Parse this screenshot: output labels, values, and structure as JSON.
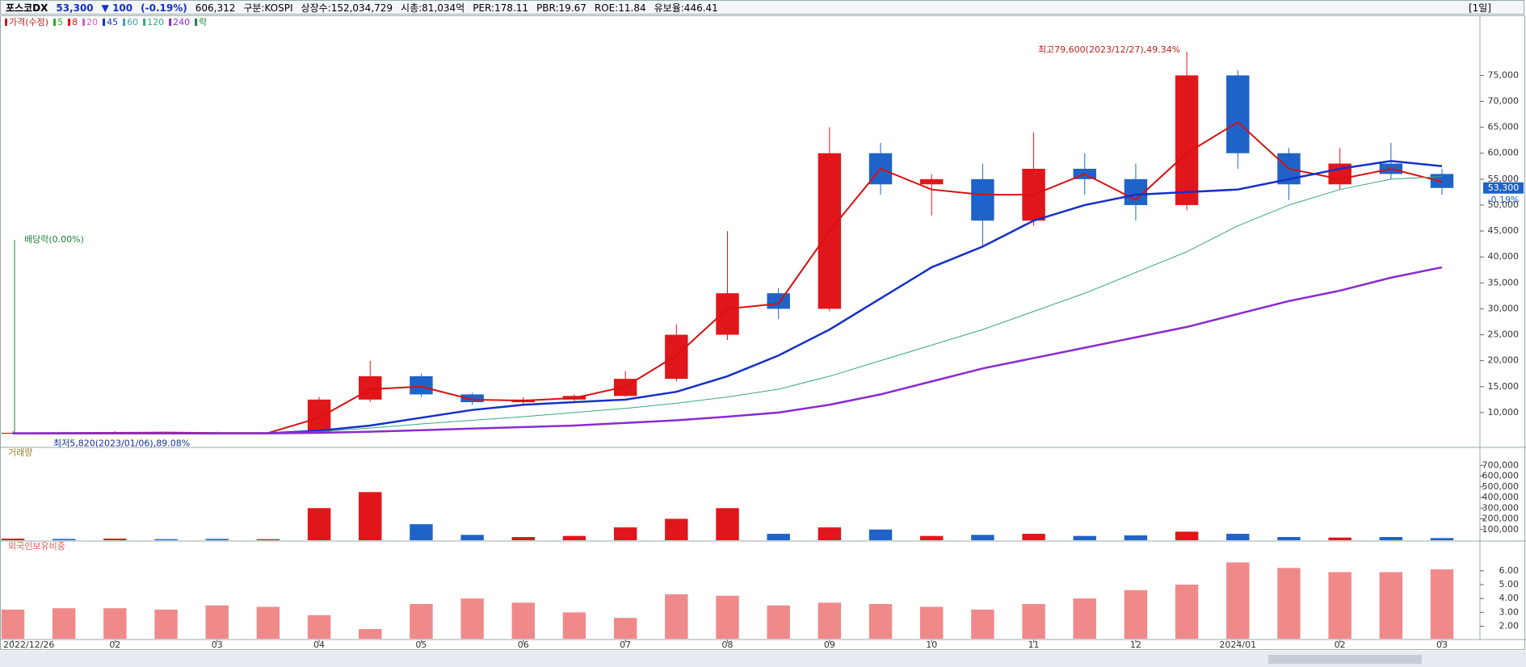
{
  "header": {
    "name": "포스코DX",
    "price": "53,300",
    "change": "▼ 100",
    "change_pct": "(-0.19%)",
    "volume": "606,312",
    "market": "구분:KOSPI",
    "shares": "상장수:152,034,729",
    "cap": "시총:81,034억",
    "per": "PER:178.11",
    "pbr": "PBR:19.67",
    "roe": "ROE:11.84",
    "reserve": "유보율:446.41",
    "period": "[1일]"
  },
  "chart_data": [
    {
      "type": "candlestick",
      "title": "가격(수정)",
      "categories": [
        "2022/12/26",
        null,
        "02",
        null,
        "03",
        null,
        "04",
        null,
        "05",
        null,
        "06",
        null,
        "07",
        null,
        "08",
        null,
        "09",
        null,
        "10",
        null,
        "11",
        null,
        "12",
        null,
        "2024/01",
        null,
        "02",
        null,
        "03"
      ],
      "open": [
        5900,
        6100,
        6000,
        6200,
        6100,
        6000,
        6100,
        12500,
        17000,
        13500,
        12000,
        12500,
        13200,
        16500,
        25000,
        33000,
        30000,
        60000,
        54000,
        55000,
        47000,
        57000,
        55000,
        50000,
        75000,
        60000,
        54000,
        58000,
        56000
      ],
      "high": [
        6400,
        6300,
        6400,
        6300,
        6300,
        6200,
        13000,
        20000,
        17500,
        13800,
        13000,
        13500,
        18000,
        27000,
        45000,
        34000,
        65000,
        62000,
        56000,
        58000,
        64000,
        60000,
        58000,
        79600,
        76000,
        61000,
        61000,
        62000,
        57000
      ],
      "low": [
        5820,
        5900,
        5900,
        6000,
        5900,
        5900,
        6000,
        12000,
        13000,
        11500,
        11500,
        12000,
        13000,
        16000,
        24000,
        28000,
        29500,
        52000,
        48000,
        42000,
        46000,
        52000,
        47000,
        49000,
        57000,
        51000,
        53000,
        55000,
        52000
      ],
      "close": [
        6100,
        6000,
        6200,
        6100,
        6000,
        6100,
        12500,
        17000,
        13500,
        12000,
        12500,
        13200,
        16500,
        25000,
        33000,
        30000,
        60000,
        54000,
        55000,
        47000,
        57000,
        55000,
        50000,
        75000,
        60000,
        54000,
        58000,
        56000,
        53300
      ],
      "up_color": "#e0161a",
      "down_color": "#1f63c8",
      "series": [
        {
          "name": "8",
          "color": "#d81010",
          "width": 2,
          "values": [
            6000,
            6050,
            6100,
            6150,
            6050,
            6050,
            9000,
            14500,
            15000,
            12500,
            12300,
            12800,
            15000,
            21000,
            30000,
            31000,
            45000,
            57000,
            53000,
            52000,
            52000,
            56000,
            51000,
            60000,
            66000,
            57000,
            55000,
            57000,
            54500
          ]
        },
        {
          "name": "45",
          "color": "#1530c8",
          "width": 2.5,
          "values": [
            6000,
            6000,
            6000,
            6000,
            6000,
            6000,
            6500,
            7500,
            9000,
            10500,
            11500,
            12000,
            12500,
            14000,
            17000,
            21000,
            26000,
            32000,
            38000,
            42000,
            47000,
            50000,
            52000,
            52500,
            53000,
            55000,
            57000,
            58500,
            57500
          ]
        },
        {
          "name": "120",
          "color": "#3aa87a",
          "width": 1,
          "values": [
            6000,
            6000,
            6000,
            6000,
            6000,
            6100,
            6300,
            7000,
            7800,
            8500,
            9200,
            10000,
            10800,
            11800,
            13000,
            14500,
            17000,
            20000,
            23000,
            26000,
            29500,
            33000,
            37000,
            41000,
            46000,
            50000,
            53000,
            55000,
            55500
          ]
        },
        {
          "name": "240",
          "color": "#8a2bd0",
          "width": 2.5,
          "values": [
            6000,
            6000,
            6000,
            6000,
            6000,
            6000,
            6100,
            6300,
            6600,
            6900,
            7200,
            7500,
            8000,
            8500,
            9200,
            10000,
            11500,
            13500,
            16000,
            18500,
            20500,
            22500,
            24500,
            26500,
            29000,
            31500,
            33500,
            36000,
            38000
          ]
        }
      ],
      "other_legend": [
        {
          "label": "5",
          "color": "#20b020"
        },
        {
          "label": "20",
          "color": "#d060c0"
        },
        {
          "label": "60",
          "color": "#40a0b0"
        },
        {
          "label": "락",
          "color": "#208040"
        }
      ],
      "ylim": [
        3600,
        84400
      ],
      "yticks": [
        {
          "value": 10000,
          "label": "10,000"
        },
        {
          "value": 15000,
          "label": "15,000"
        },
        {
          "value": 20000,
          "label": "20,000"
        },
        {
          "value": 25000,
          "label": "25,000"
        },
        {
          "value": 30000,
          "label": "30,000"
        },
        {
          "value": 35000,
          "label": "35,000"
        },
        {
          "value": 40000,
          "label": "40,000"
        },
        {
          "value": 45000,
          "label": "45,000"
        },
        {
          "value": 50000,
          "label": "50,000"
        },
        {
          "value": 55000,
          "label": "55,000"
        },
        {
          "value": 60000,
          "label": "60,000"
        },
        {
          "value": 65000,
          "label": "65,000"
        },
        {
          "value": 70000,
          "label": "70,000"
        },
        {
          "value": 75000,
          "label": "75,000"
        }
      ],
      "current_label": "53,300",
      "current_pct": "-0.19%",
      "annotations": {
        "high": "최고79,600(2023/12/27),49.34%",
        "low": "최저5,820(2023/01/06),89.08%",
        "dividend": "배당락(0.00%)"
      }
    },
    {
      "type": "bar",
      "title": "거래량",
      "values": [
        15000,
        12000,
        15000,
        10000,
        12000,
        10000,
        300000,
        450000,
        150000,
        50000,
        30000,
        40000,
        120000,
        200000,
        300000,
        60000,
        120000,
        100000,
        40000,
        50000,
        60000,
        40000,
        45000,
        80000,
        60000,
        30000,
        25000,
        30000,
        20000
      ],
      "ylim": [
        0,
        770000
      ],
      "yticks": [
        {
          "value": 100000,
          "label": "100,000"
        },
        {
          "value": 200000,
          "label": "200,000"
        },
        {
          "value": 300000,
          "label": "300,000"
        },
        {
          "value": 400000,
          "label": "400,000"
        },
        {
          "value": 500000,
          "label": "500,000"
        },
        {
          "value": 600000,
          "label": "600,000"
        },
        {
          "value": 700000,
          "label": "700,000"
        }
      ]
    },
    {
      "type": "bar",
      "title": "외국인보유비중",
      "color": "#f08a8a",
      "values": [
        3.2,
        3.3,
        3.3,
        3.2,
        3.5,
        3.4,
        2.8,
        1.8,
        3.6,
        4.0,
        3.7,
        3.0,
        2.6,
        4.3,
        4.2,
        3.5,
        3.7,
        3.6,
        3.4,
        3.2,
        3.6,
        4.0,
        4.6,
        5.0,
        6.6,
        6.2,
        5.9,
        5.9,
        6.1
      ],
      "ylim": [
        1.1,
        7.5
      ],
      "yticks": [
        {
          "value": 2,
          "label": "2.00"
        },
        {
          "value": 3,
          "label": "3.00"
        },
        {
          "value": 4,
          "label": "4.00"
        },
        {
          "value": 5,
          "label": "5.00"
        },
        {
          "value": 6,
          "label": "6.00"
        }
      ]
    }
  ]
}
